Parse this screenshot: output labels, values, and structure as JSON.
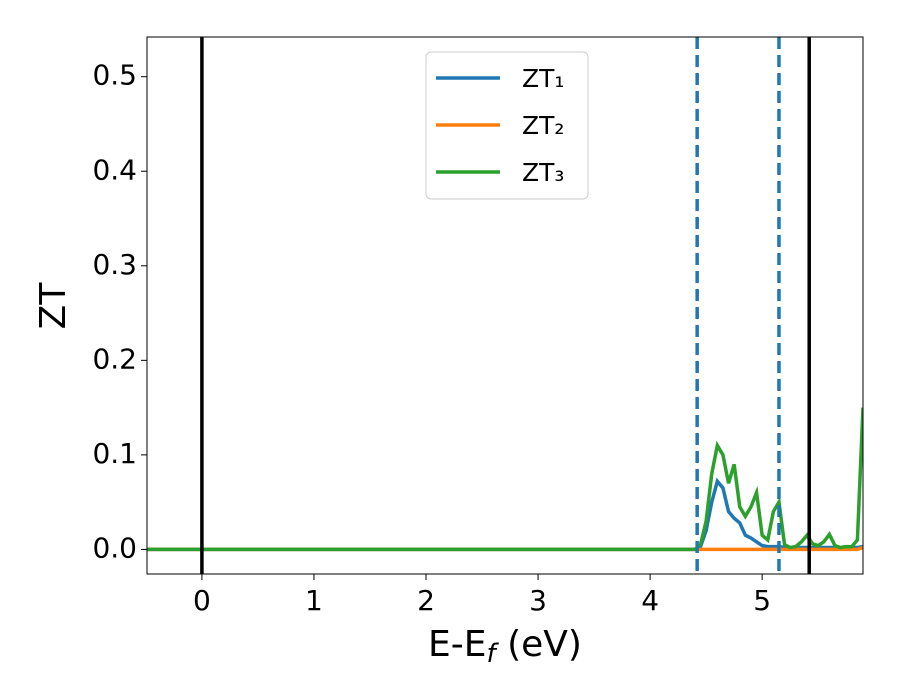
{
  "chart_data": {
    "type": "line",
    "xlabel": [
      "E-E",
      "f",
      " (eV)"
    ],
    "ylabel": "ZT",
    "xlim": [
      -0.49,
      5.9
    ],
    "ylim": [
      -0.026,
      0.542
    ],
    "xticks": [
      0,
      1,
      2,
      3,
      4,
      5
    ],
    "yticks": [
      {
        "value": 0,
        "label": "0.0"
      },
      0.1,
      0.2,
      0.3,
      0.4,
      0.5
    ],
    "legend": "upper center",
    "x": [
      -0.49,
      4.4,
      4.45,
      4.5,
      4.55,
      4.6,
      4.65,
      4.7,
      4.75,
      4.8,
      4.85,
      4.9,
      4.95,
      5.0,
      5.05,
      5.1,
      5.15,
      5.2,
      5.25,
      5.3,
      5.35,
      5.4,
      5.45,
      5.5,
      5.55,
      5.6,
      5.65,
      5.7,
      5.75,
      5.8,
      5.85,
      5.9
    ],
    "series": [
      {
        "name": "ZT₁",
        "color": "#1f77b4",
        "values": [
          0,
          0,
          0.003,
          0.02,
          0.05,
          0.072,
          0.065,
          0.04,
          0.033,
          0.028,
          0.015,
          0.012,
          0.008,
          0.004,
          0.003,
          0.003,
          0.003,
          0.002,
          0.002,
          0.002,
          0.002,
          0.002,
          0.002,
          0.002,
          0.002,
          0.002,
          0.002,
          0.002,
          0.002,
          0.002,
          0.002,
          0.003
        ]
      },
      {
        "name": "ZT₂",
        "color": "#ff7f0e",
        "values": [
          0,
          0,
          0,
          0,
          0,
          0,
          0,
          0,
          0,
          0,
          0,
          0,
          0,
          0,
          0,
          0,
          0,
          0,
          0,
          0,
          0,
          0,
          0,
          0,
          0,
          0,
          0,
          0,
          0,
          0,
          0,
          0.002
        ]
      },
      {
        "name": "ZT₃",
        "color": "#2ca02c",
        "values": [
          0,
          0,
          0.005,
          0.03,
          0.08,
          0.11,
          0.1,
          0.07,
          0.09,
          0.045,
          0.035,
          0.045,
          0.06,
          0.015,
          0.01,
          0.04,
          0.05,
          0.005,
          0.002,
          0.003,
          0.008,
          0.015,
          0.006,
          0.004,
          0.008,
          0.016,
          0.004,
          0.002,
          0.003,
          0.003,
          0.01,
          0.15
        ]
      }
    ],
    "vlines": [
      {
        "x": 0,
        "color": "#000000",
        "style": "solid"
      },
      {
        "x": 5.42,
        "color": "#000000",
        "style": "solid"
      },
      {
        "x": 4.42,
        "color": "#1f77b4",
        "style": "dashed"
      },
      {
        "x": 5.15,
        "color": "#1f77b4",
        "style": "dashed"
      }
    ]
  }
}
